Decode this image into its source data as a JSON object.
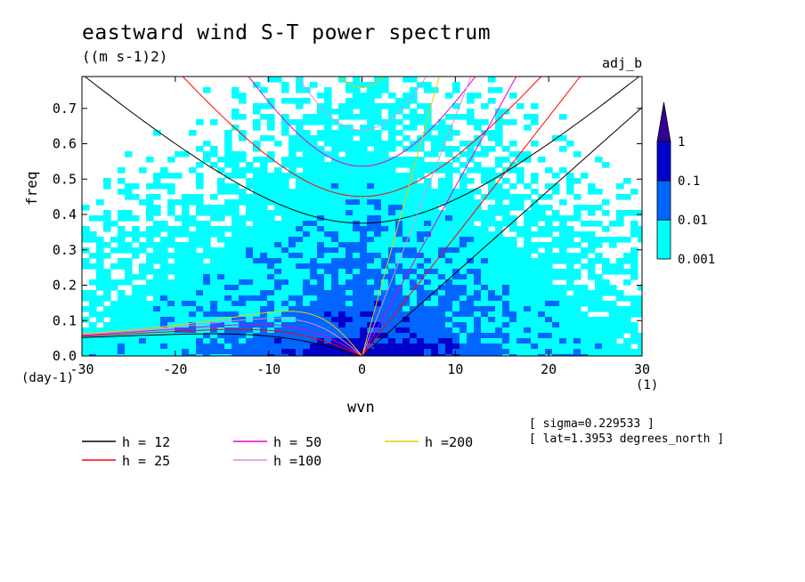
{
  "title": "eastward wind S-T power spectrum",
  "units": "((m s-1)2)",
  "corner_label": "adj_b",
  "info": [
    "[ sigma=0.229533 ]",
    "[ lat=1.3953 degrees_north ]"
  ],
  "colors": {
    "level1": "#00ffff",
    "level2": "#0066ff",
    "level3": "#0000cc",
    "level4": "#330099",
    "background": "#ffffff"
  },
  "chart_data": {
    "type": "heatmap",
    "title": "eastward wind S-T power spectrum",
    "xlabel": "wvn",
    "ylabel": "freq",
    "x_unit": "(1)",
    "y_unit": "(day-1)",
    "xlim": [
      -30,
      30
    ],
    "ylim": [
      0,
      0.79
    ],
    "x_ticks": [
      -30,
      -20,
      -10,
      0,
      10,
      20,
      30
    ],
    "x_tick_labels": [
      "-30",
      "-20",
      "-10",
      "0",
      "10",
      "20",
      "30"
    ],
    "y_ticks": [
      0,
      0.1,
      0.2,
      0.3,
      0.4,
      0.5,
      0.6,
      0.7
    ],
    "y_tick_labels": [
      "0.0",
      "0.1",
      "0.2",
      "0.3",
      "0.4",
      "0.5",
      "0.6",
      "0.7"
    ],
    "contour_levels": [
      0.001,
      0.01,
      0.1,
      1
    ],
    "colorbar_labels": [
      "0.001",
      "0.01",
      "0.1",
      "1"
    ],
    "colorbar_colors": [
      "#00ffff",
      "#0066ff",
      "#0000cc",
      "#330099"
    ],
    "dispersion_curves": [
      {
        "label": "h = 12",
        "h": 12,
        "color": "#000000"
      },
      {
        "label": "h = 25",
        "h": 25,
        "color": "#ff0000"
      },
      {
        "label": "h = 50",
        "h": 50,
        "color": "#e600cc"
      },
      {
        "label": "h =100",
        "h": 100,
        "color": "#e08ee0"
      },
      {
        "label": "h =200",
        "h": 200,
        "color": "#f0c800"
      }
    ]
  }
}
